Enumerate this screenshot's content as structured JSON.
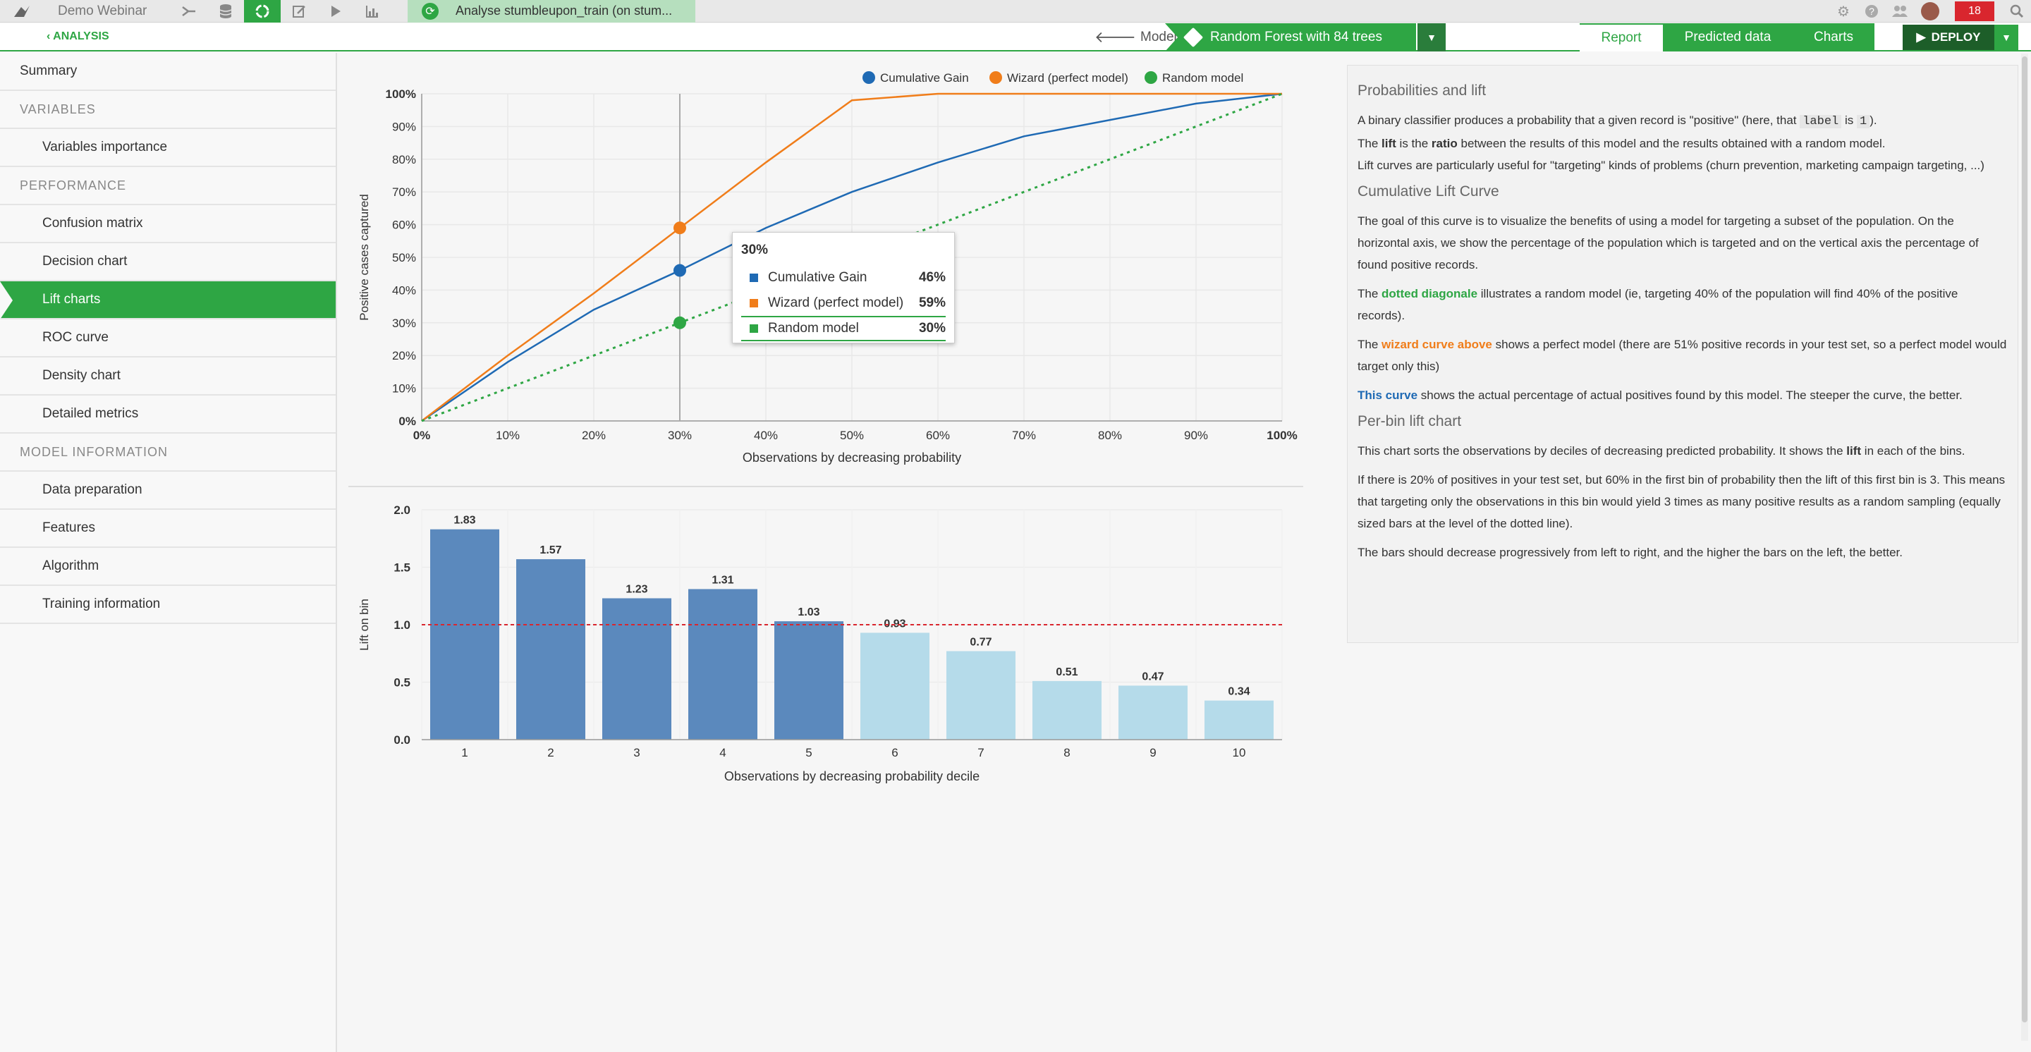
{
  "topbar": {
    "logo_icon": "bird-logo-icon",
    "project": "Demo Webinar",
    "icons": [
      "flow-icon",
      "datasets-icon",
      "analysis-icon",
      "notebook-icon",
      "run-icon",
      "dashboard-icon"
    ],
    "tab_label": "Analyse stumbleupon_train (on stum...",
    "right_icons": [
      "gear-icon",
      "help-icon",
      "people-icon",
      "avatar",
      "search-icon"
    ],
    "notifications": "18"
  },
  "subbar": {
    "analysis_link": "‹ ANALYSIS",
    "models_link": "Models",
    "model_name": "Random Forest with 84 trees",
    "tabs": [
      "Report",
      "Predicted data",
      "Charts"
    ],
    "deploy": "DEPLOY"
  },
  "sidebar": {
    "items": [
      {
        "label": "Summary",
        "type": "top"
      },
      {
        "label": "VARIABLES",
        "type": "sec"
      },
      {
        "label": "Variables importance",
        "type": "sub"
      },
      {
        "label": "PERFORMANCE",
        "type": "sec"
      },
      {
        "label": "Confusion matrix",
        "type": "sub"
      },
      {
        "label": "Decision chart",
        "type": "sub"
      },
      {
        "label": "Lift charts",
        "type": "sub",
        "active": true
      },
      {
        "label": "ROC curve",
        "type": "sub"
      },
      {
        "label": "Density chart",
        "type": "sub"
      },
      {
        "label": "Detailed metrics",
        "type": "sub"
      },
      {
        "label": "MODEL INFORMATION",
        "type": "sec"
      },
      {
        "label": "Data preparation",
        "type": "sub"
      },
      {
        "label": "Features",
        "type": "sub"
      },
      {
        "label": "Algorithm",
        "type": "sub"
      },
      {
        "label": "Training information",
        "type": "sub"
      }
    ]
  },
  "chart_data": [
    {
      "type": "line",
      "xlabel": "Observations by decreasing probability",
      "ylabel": "Positive cases captured",
      "x": [
        0,
        10,
        20,
        30,
        40,
        50,
        60,
        70,
        80,
        90,
        100
      ],
      "x_ticks": [
        "0%",
        "10%",
        "20%",
        "30%",
        "40%",
        "50%",
        "60%",
        "70%",
        "80%",
        "90%",
        "100%"
      ],
      "y_ticks": [
        "0%",
        "10%",
        "20%",
        "30%",
        "40%",
        "50%",
        "60%",
        "70%",
        "80%",
        "90%",
        "100%"
      ],
      "xlim": [
        0,
        100
      ],
      "ylim": [
        0,
        100
      ],
      "legend_position": "top-right",
      "series": [
        {
          "name": "Cumulative Gain",
          "color": "#1f6ab4",
          "values": [
            0,
            18,
            34,
            46,
            59,
            70,
            79,
            87,
            92,
            97,
            100
          ]
        },
        {
          "name": "Wizard (perfect model)",
          "color": "#f07d1a",
          "values": [
            0,
            20,
            39,
            59,
            79,
            98,
            100,
            100,
            100,
            100,
            100
          ]
        },
        {
          "name": "Random model",
          "color": "#2ea644",
          "dashed": true,
          "values": [
            0,
            10,
            20,
            30,
            40,
            50,
            60,
            70,
            80,
            90,
            100
          ]
        }
      ],
      "tooltip": {
        "title": "30%",
        "rows": [
          {
            "name": "Cumulative Gain",
            "value": "46%",
            "color": "#1f6ab4"
          },
          {
            "name": "Wizard (perfect model)",
            "value": "59%",
            "color": "#f07d1a"
          },
          {
            "name": "Random model",
            "value": "30%",
            "color": "#2ea644"
          }
        ]
      }
    },
    {
      "type": "bar",
      "xlabel": "Observations by decreasing probability decile",
      "ylabel": "Lift on bin",
      "categories": [
        "1",
        "2",
        "3",
        "4",
        "5",
        "6",
        "7",
        "8",
        "9",
        "10"
      ],
      "values": [
        1.83,
        1.57,
        1.23,
        1.31,
        1.03,
        0.93,
        0.77,
        0.51,
        0.47,
        0.34
      ],
      "labels": [
        "1.83",
        "1.57",
        "1.23",
        "1.31",
        "1.03",
        "0.93",
        "0.77",
        "0.51",
        "0.47",
        "0.34"
      ],
      "y_ticks": [
        "0.0",
        "0.5",
        "1.0",
        "1.5",
        "2.0"
      ],
      "ylim": [
        0,
        2.0
      ],
      "reference_line": 1.0,
      "colors": {
        "above": "#5b89bd",
        "below": "#b5dbea",
        "reference": "#d9262e"
      }
    }
  ],
  "info": {
    "h1": "Probabilities and lift",
    "p1a": "A binary classifier produces a probability that a given record is \"positive\" (here, that",
    "p1_code1": "label",
    "p1b": "is",
    "p1_code2": "1",
    "p1c": ").",
    "p2a": "The",
    "p2_bold": "lift",
    "p2b": "is the",
    "p2_bold2": "ratio",
    "p2c": "between the results of this model and the results obtained with a random model.",
    "p3": "Lift curves are particularly useful for \"targeting\" kinds of problems (churn prevention, marketing campaign targeting, ...)",
    "h2": "Cumulative Lift Curve",
    "p4": "The goal of this curve is to visualize the benefits of using a model for targeting a subset of the population. On the horizontal axis, we show the percentage of the population which is targeted and on the vertical axis the percentage of found positive records.",
    "p5a": "The",
    "p5_hl": "dotted diagonale",
    "p5b": "illustrates a random model (ie, targeting 40% of the population will find 40% of the positive records).",
    "p6a": "The",
    "p6_hl": "wizard curve above",
    "p6b": "shows a perfect model (there are 51% positive records in your test set, so a perfect model would target only this)",
    "p7_hl": "This curve",
    "p7b": "shows the actual percentage of actual positives found by this model. The steeper the curve, the better.",
    "h3": "Per-bin lift chart",
    "p8a": "This chart sorts the observations by deciles of decreasing predicted probability. It shows the",
    "p8_bold": "lift",
    "p8b": "in each of the bins.",
    "p9": "If there is 20% of positives in your test set, but 60% in the first bin of probability then the lift of this first bin is 3. This means that targeting only the observations in this bin would yield 3 times as many positive results as a random sampling (equally sized bars at the level of the dotted line).",
    "p10": "The bars should decrease progressively from left to right, and the higher the bars on the left, the better."
  }
}
